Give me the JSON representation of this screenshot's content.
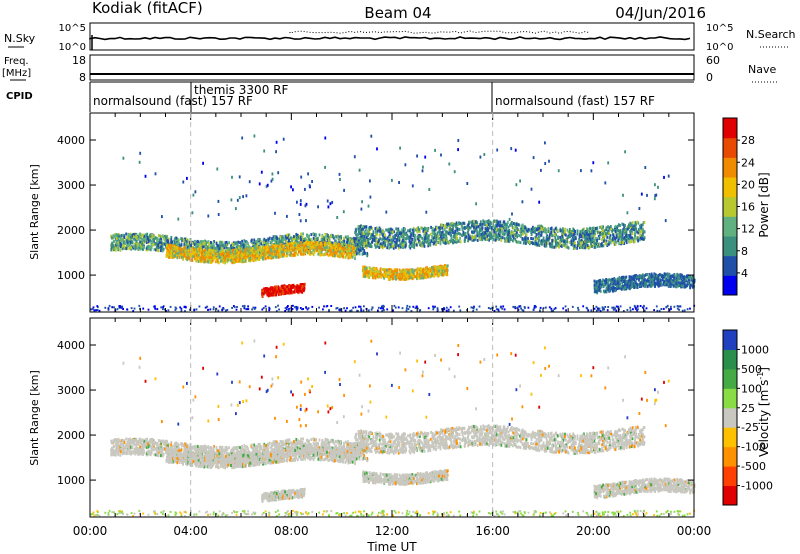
{
  "header": {
    "station": "Kodiak (fitACF)",
    "beam": "Beam 04",
    "date": "04/Jun/2016"
  },
  "top_panels": {
    "nsky_label": "N.Sky",
    "nsearch_label": "N.Search",
    "freq_label_1": "Freq.",
    "freq_label_2": "[MHz]",
    "nave_label": "Nave",
    "cpid_label": "CPID",
    "noise_ticks_left": [
      "10^5",
      "10^0"
    ],
    "noise_ticks_right": [
      "10^5",
      "10^0"
    ],
    "freq_ticks": [
      "18",
      "8"
    ],
    "nave_ticks": [
      "60",
      "0"
    ],
    "cpid_entries": [
      {
        "text": "themis 3300 RF",
        "time_h": 4.0
      },
      {
        "text": "normalsound (fast) 157 RF",
        "time_h": 0.0
      },
      {
        "text": "normalsound (fast) 157 RF",
        "time_h": 16.0
      }
    ]
  },
  "colors": {
    "power": [
      "#0000ee",
      "#1f4fa8",
      "#3a8f7f",
      "#60b080",
      "#b8c830",
      "#f0c000",
      "#f08a00",
      "#e84a00",
      "#e00000"
    ],
    "velocity_neg": [
      "#e00000",
      "#ff4000",
      "#ff9000",
      "#ffc000"
    ],
    "velocity_mid": "#c8c8c0",
    "velocity_pos": [
      "#88dd44",
      "#44aa44",
      "#2a8f4a",
      "#2040c0"
    ],
    "ground": "#9a9a9a"
  },
  "chart_data": [
    {
      "type": "heatmap",
      "title": "Power [dB]",
      "ylabel": "Slant Range [km]",
      "ylim": [
        180,
        4600
      ],
      "xlim": [
        0,
        24
      ],
      "yticks": [
        "1000",
        "2000",
        "3000",
        "4000"
      ],
      "colorbar_ticks": [
        "4",
        "8",
        "12",
        "16",
        "20",
        "24",
        "28"
      ],
      "colorbar_label": "Power [dB]",
      "bands": [
        {
          "t0": 0.8,
          "t1": 11.0,
          "r_center": 1650,
          "r_width": 180,
          "level": "medium-high"
        },
        {
          "t0": 3.0,
          "t1": 10.5,
          "r_center": 1500,
          "r_width": 140,
          "level": "high"
        },
        {
          "t0": 6.8,
          "t1": 8.5,
          "r_center": 620,
          "r_width": 90,
          "level": "max"
        },
        {
          "t0": 10.8,
          "t1": 14.2,
          "r_center": 1100,
          "r_width": 110,
          "level": "high"
        },
        {
          "t0": 10.5,
          "t1": 22.0,
          "r_center": 1900,
          "r_width": 220,
          "level": "medium"
        },
        {
          "t0": 20.0,
          "t1": 24.0,
          "r_center": 800,
          "r_width": 140,
          "level": "low"
        }
      ]
    },
    {
      "type": "heatmap",
      "title": "Velocity [m s^-1]",
      "ylabel": "Slant Range [km]",
      "xlabel": "Time UT",
      "ylim": [
        180,
        4600
      ],
      "xlim": [
        0,
        24
      ],
      "yticks": [
        "1000",
        "2000",
        "3000",
        "4000"
      ],
      "xticks": [
        "00:00",
        "04:00",
        "08:00",
        "12:00",
        "16:00",
        "20:00",
        "00:00"
      ],
      "colorbar_ticks": [
        "1000",
        "500",
        "100",
        "25",
        "-25",
        "-100",
        "-500",
        "-1000"
      ],
      "colorbar_label": "Velocity [m s",
      "colorbar_label_sup": "-1",
      "colorbar_label_end": "]"
    }
  ]
}
